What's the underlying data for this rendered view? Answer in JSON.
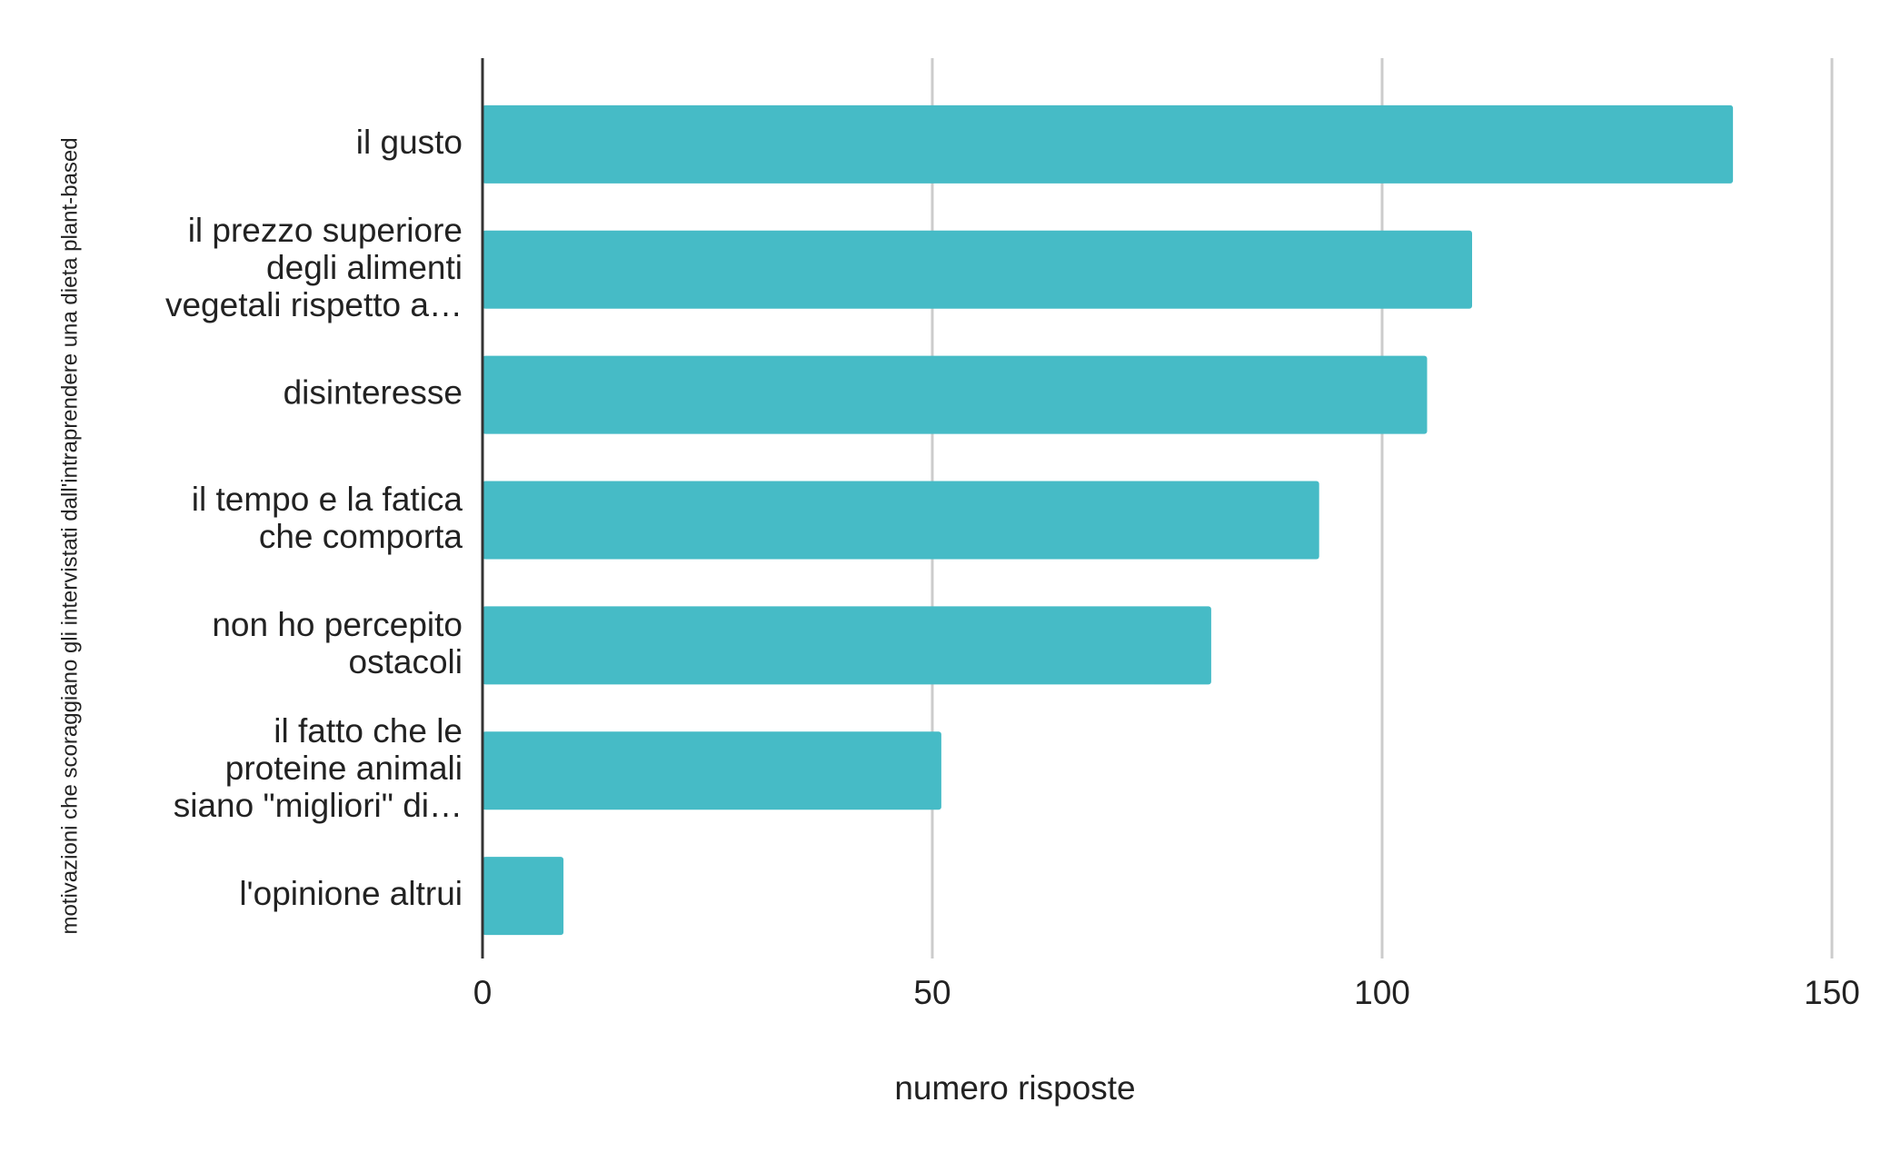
{
  "chart_data": {
    "type": "bar",
    "orientation": "horizontal",
    "x_axis_label": "numero risposte",
    "y_axis_label": "motivazioni che scoraggiano gli intervistati dall'intraprendere una dieta plant-based",
    "categories": [
      "il gusto",
      "il prezzo superiore degli alimenti vegetali rispetto a…",
      "disinteresse",
      "il tempo e la fatica che comporta",
      "non ho percepito ostacoli",
      "il fatto che le proteine animali siano \"migliori\" di…",
      "l'opinione altrui"
    ],
    "values": [
      139,
      110,
      105,
      93,
      81,
      51,
      9
    ],
    "color": "#46bbc6",
    "xlim": [
      0,
      150
    ],
    "xticks": [
      0,
      50,
      100,
      150
    ],
    "grid": true
  }
}
